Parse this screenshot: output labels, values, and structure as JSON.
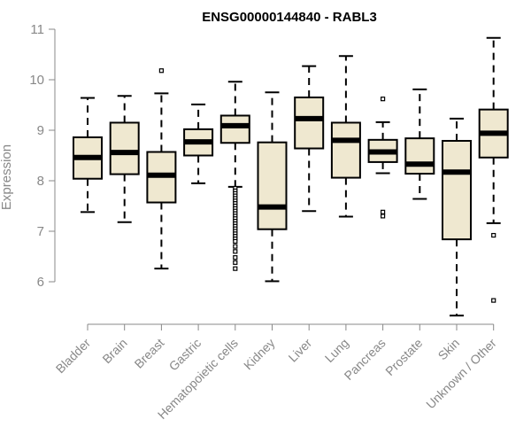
{
  "chart_data": {
    "type": "boxplot",
    "title": "ENSG00000144840 - RABL3",
    "xlabel": "",
    "ylabel": "Expression",
    "ylim": [
      5.25,
      11.1
    ],
    "yticks": [
      6,
      7,
      8,
      9,
      10,
      11
    ],
    "categories": [
      "Bladder",
      "Brain",
      "Breast",
      "Gastric",
      "Hematopoietic cells",
      "Kidney",
      "Liver",
      "Lung",
      "Pancreas",
      "Prostate",
      "Skin",
      "Unknown / Other"
    ],
    "boxes": [
      {
        "whisker_low": 7.38,
        "q1": 8.04,
        "median": 8.46,
        "q3": 8.86,
        "whisker_high": 9.64,
        "outliers": []
      },
      {
        "whisker_low": 7.18,
        "q1": 8.13,
        "median": 8.56,
        "q3": 9.15,
        "whisker_high": 9.68,
        "outliers": []
      },
      {
        "whisker_low": 6.26,
        "q1": 7.57,
        "median": 8.11,
        "q3": 8.57,
        "whisker_high": 9.73,
        "outliers": [
          10.18
        ]
      },
      {
        "whisker_low": 7.95,
        "q1": 8.5,
        "median": 8.77,
        "q3": 9.02,
        "whisker_high": 9.51,
        "outliers": []
      },
      {
        "whisker_low": 7.88,
        "q1": 8.75,
        "median": 9.09,
        "q3": 9.29,
        "whisker_high": 9.96,
        "outliers": [
          7.85,
          7.8,
          7.75,
          7.7,
          7.65,
          7.6,
          7.55,
          7.5,
          7.45,
          7.4,
          7.35,
          7.3,
          7.25,
          7.2,
          7.15,
          7.1,
          7.05,
          7.0,
          6.95,
          6.9,
          6.85,
          6.8,
          6.7,
          6.6,
          6.48,
          6.38,
          6.26
        ]
      },
      {
        "whisker_low": 6.01,
        "q1": 7.04,
        "median": 7.48,
        "q3": 8.76,
        "whisker_high": 9.75,
        "outliers": []
      },
      {
        "whisker_low": 7.4,
        "q1": 8.64,
        "median": 9.23,
        "q3": 9.65,
        "whisker_high": 10.27,
        "outliers": []
      },
      {
        "whisker_low": 7.29,
        "q1": 8.06,
        "median": 8.8,
        "q3": 9.15,
        "whisker_high": 10.47,
        "outliers": []
      },
      {
        "whisker_low": 8.15,
        "q1": 8.37,
        "median": 8.57,
        "q3": 8.81,
        "whisker_high": 9.16,
        "outliers": [
          9.62,
          7.38,
          7.3
        ]
      },
      {
        "whisker_low": 7.64,
        "q1": 8.14,
        "median": 8.33,
        "q3": 8.84,
        "whisker_high": 9.81,
        "outliers": []
      },
      {
        "whisker_low": 5.33,
        "q1": 6.84,
        "median": 8.17,
        "q3": 8.79,
        "whisker_high": 9.23,
        "outliers": []
      },
      {
        "whisker_low": 7.16,
        "q1": 8.46,
        "median": 8.94,
        "q3": 9.41,
        "whisker_high": 10.83,
        "outliers": [
          6.92,
          5.63
        ]
      }
    ],
    "box_fill": "#efe8d0",
    "box_stroke": "#000000",
    "axis_color": "#888888",
    "grid": false,
    "legend": "none"
  }
}
